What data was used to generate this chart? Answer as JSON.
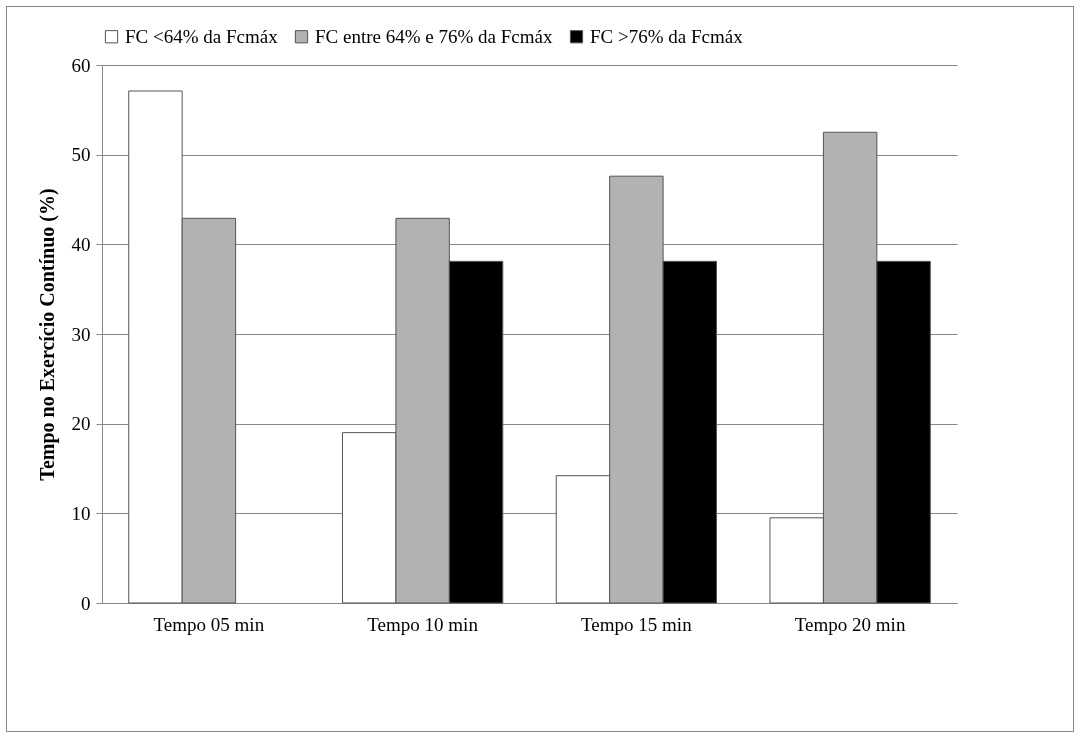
{
  "chart_data": {
    "type": "bar",
    "ylabel": "Tempo no Exercício Contínuo (%)",
    "categories": [
      "Tempo 05 min",
      "Tempo 10 min",
      "Tempo 15 min",
      "Tempo 20 min"
    ],
    "series": [
      {
        "name": "FC <64% da Fcmáx",
        "color": "#ffffff",
        "values": [
          57.1,
          19.0,
          14.2,
          9.5
        ]
      },
      {
        "name": "FC entre 64% e 76% da Fcmáx",
        "color": "#b2b2b2",
        "values": [
          42.9,
          42.9,
          47.6,
          52.5
        ]
      },
      {
        "name": "FC >76% da Fcmáx",
        "color": "#000000",
        "values": [
          null,
          38.1,
          38.1,
          38.1
        ]
      }
    ],
    "ylim": [
      0,
      60
    ],
    "yticks": [
      0,
      10,
      20,
      30,
      40,
      50,
      60
    ],
    "grid": "y",
    "legend": "top"
  }
}
